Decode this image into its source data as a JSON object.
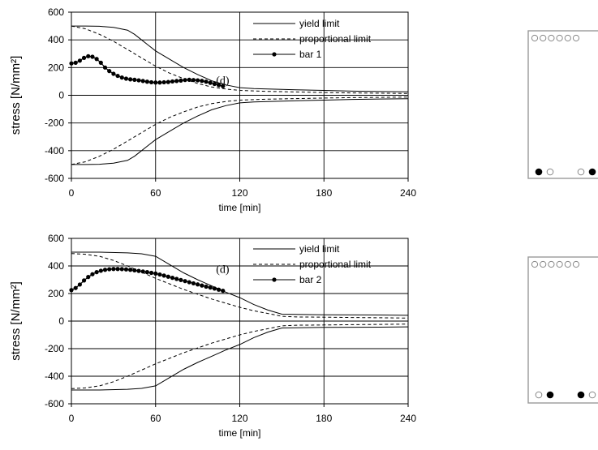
{
  "chart_data": [
    {
      "type": "line",
      "xlabel": "time [min]",
      "ylabel": "stress [N/mm²]",
      "xlim": [
        0,
        240
      ],
      "ylim": [
        -600,
        600
      ],
      "xticks": [
        0,
        60,
        120,
        180,
        240
      ],
      "yticks": [
        600,
        400,
        200,
        0,
        -200,
        -400,
        -600
      ],
      "grid": true,
      "legend_position": "top-right",
      "annotation": {
        "text": "(d)",
        "x": 110,
        "y": 110
      },
      "series": [
        {
          "name": "yield limit",
          "style": "solid",
          "x": [
            0,
            10,
            20,
            30,
            40,
            45,
            50,
            55,
            60,
            70,
            80,
            90,
            100,
            110,
            120,
            130,
            140,
            150,
            160,
            180,
            200,
            220,
            240
          ],
          "y": [
            500,
            500,
            498,
            490,
            470,
            440,
            400,
            360,
            320,
            260,
            200,
            150,
            105,
            75,
            55,
            48,
            45,
            42,
            40,
            35,
            30,
            27,
            25
          ]
        },
        {
          "name": "yield limit (lower)",
          "legend": false,
          "style": "solid",
          "x": [
            0,
            10,
            20,
            30,
            40,
            45,
            50,
            55,
            60,
            70,
            80,
            90,
            100,
            110,
            120,
            130,
            140,
            150,
            160,
            180,
            200,
            220,
            240
          ],
          "y": [
            -500,
            -500,
            -498,
            -490,
            -470,
            -440,
            -400,
            -360,
            -320,
            -260,
            -200,
            -150,
            -105,
            -75,
            -55,
            -48,
            -45,
            -42,
            -40,
            -35,
            -30,
            -27,
            -25
          ]
        },
        {
          "name": "proportional limit",
          "style": "dashed",
          "x": [
            0,
            10,
            20,
            30,
            40,
            50,
            60,
            70,
            80,
            90,
            100,
            110,
            120,
            140,
            160,
            180,
            200,
            220,
            240
          ],
          "y": [
            500,
            480,
            440,
            390,
            330,
            270,
            210,
            160,
            120,
            85,
            60,
            45,
            35,
            28,
            24,
            20,
            17,
            15,
            13
          ]
        },
        {
          "name": "proportional limit (lower)",
          "legend": false,
          "style": "dashed",
          "x": [
            0,
            10,
            20,
            30,
            40,
            50,
            60,
            70,
            80,
            90,
            100,
            110,
            120,
            140,
            160,
            180,
            200,
            220,
            240
          ],
          "y": [
            -500,
            -480,
            -440,
            -390,
            -330,
            -270,
            -210,
            -160,
            -120,
            -85,
            -60,
            -45,
            -35,
            -28,
            -24,
            -20,
            -17,
            -15,
            -13
          ]
        },
        {
          "name": "bar 1",
          "style": "marker-line",
          "x": [
            0,
            3,
            6,
            9,
            12,
            15,
            18,
            21,
            24,
            27,
            30,
            33,
            36,
            39,
            42,
            45,
            48,
            51,
            54,
            57,
            60,
            63,
            66,
            69,
            72,
            75,
            78,
            81,
            84,
            87,
            90,
            93,
            96,
            99,
            102,
            105,
            108
          ],
          "y": [
            230,
            235,
            250,
            270,
            282,
            278,
            262,
            235,
            200,
            175,
            155,
            140,
            128,
            120,
            115,
            112,
            108,
            103,
            98,
            94,
            92,
            92,
            94,
            96,
            100,
            103,
            106,
            110,
            112,
            110,
            108,
            104,
            98,
            90,
            82,
            74,
            66
          ]
        }
      ]
    },
    {
      "type": "line",
      "xlabel": "time [min]",
      "ylabel": "stress [N/mm²]",
      "xlim": [
        0,
        240
      ],
      "ylim": [
        -600,
        600
      ],
      "xticks": [
        0,
        60,
        120,
        180,
        240
      ],
      "yticks": [
        600,
        400,
        200,
        0,
        -200,
        -400,
        -600
      ],
      "grid": true,
      "legend_position": "top-right",
      "annotation": {
        "text": "(d)",
        "x": 110,
        "y": 380
      },
      "series": [
        {
          "name": "yield limit",
          "style": "solid",
          "x": [
            0,
            20,
            40,
            50,
            60,
            70,
            80,
            90,
            100,
            110,
            120,
            130,
            140,
            150,
            160,
            180,
            200,
            220,
            240
          ],
          "y": [
            500,
            500,
            495,
            488,
            470,
            410,
            350,
            300,
            255,
            210,
            170,
            120,
            80,
            50,
            48,
            46,
            45,
            44,
            42
          ]
        },
        {
          "name": "yield limit (lower)",
          "legend": false,
          "style": "solid",
          "x": [
            0,
            20,
            40,
            50,
            60,
            70,
            80,
            90,
            100,
            110,
            120,
            130,
            140,
            150,
            160,
            180,
            200,
            220,
            240
          ],
          "y": [
            -500,
            -500,
            -495,
            -488,
            -470,
            -410,
            -350,
            -300,
            -255,
            -210,
            -170,
            -120,
            -80,
            -50,
            -48,
            -46,
            -45,
            -44,
            -42
          ]
        },
        {
          "name": "proportional limit",
          "style": "dashed",
          "x": [
            0,
            10,
            20,
            30,
            40,
            50,
            60,
            70,
            80,
            90,
            100,
            110,
            120,
            130,
            140,
            150,
            160,
            180,
            200,
            220,
            240
          ],
          "y": [
            490,
            485,
            470,
            440,
            400,
            355,
            310,
            270,
            230,
            195,
            160,
            130,
            100,
            75,
            55,
            35,
            30,
            28,
            26,
            24,
            22
          ]
        },
        {
          "name": "proportional limit (lower)",
          "legend": false,
          "style": "dashed",
          "x": [
            0,
            10,
            20,
            30,
            40,
            50,
            60,
            70,
            80,
            90,
            100,
            110,
            120,
            130,
            140,
            150,
            160,
            180,
            200,
            220,
            240
          ],
          "y": [
            -490,
            -485,
            -470,
            -440,
            -400,
            -355,
            -310,
            -270,
            -230,
            -195,
            -160,
            -130,
            -100,
            -75,
            -55,
            -35,
            -30,
            -28,
            -26,
            -24,
            -22
          ]
        },
        {
          "name": "bar 2",
          "style": "marker-line",
          "x": [
            0,
            3,
            6,
            9,
            12,
            15,
            18,
            21,
            24,
            27,
            30,
            33,
            36,
            39,
            42,
            45,
            48,
            51,
            54,
            57,
            60,
            63,
            66,
            69,
            72,
            75,
            78,
            81,
            84,
            87,
            90,
            93,
            96,
            99,
            102,
            105,
            108
          ],
          "y": [
            225,
            240,
            265,
            295,
            320,
            340,
            355,
            365,
            372,
            376,
            378,
            378,
            377,
            375,
            372,
            368,
            364,
            360,
            355,
            350,
            345,
            338,
            330,
            322,
            314,
            306,
            298,
            290,
            282,
            274,
            266,
            258,
            250,
            243,
            236,
            228,
            220
          ]
        }
      ]
    }
  ],
  "cross_sections": [
    {
      "top_row": [
        "open",
        "open",
        "open",
        "open",
        "open",
        "open"
      ],
      "bottom_row": [
        "filled",
        "open",
        "open",
        "filled"
      ]
    },
    {
      "top_row": [
        "open",
        "open",
        "open",
        "open",
        "open",
        "open"
      ],
      "bottom_row": [
        "open",
        "filled",
        "filled",
        "open"
      ]
    }
  ]
}
